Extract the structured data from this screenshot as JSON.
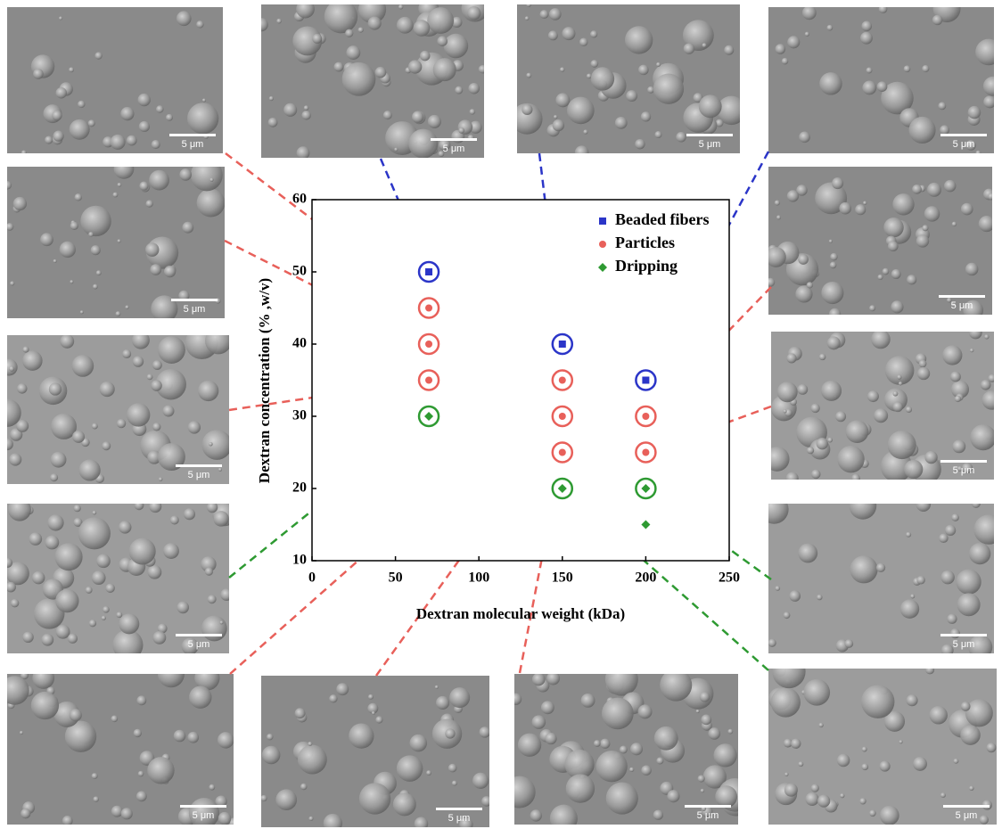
{
  "chart_data": {
    "type": "scatter",
    "x_label": "Dextran molecular weight (kDa)",
    "y_label": "Dextran concentration (% ,w/v)",
    "xlim": [
      0,
      250
    ],
    "xticks": [
      0,
      50,
      100,
      150,
      200,
      250
    ],
    "ylim": [
      10,
      60
    ],
    "yticks": [
      10,
      20,
      30,
      40,
      50,
      60
    ],
    "legend": "top-right",
    "series": [
      {
        "name": "Beaded fibers",
        "color": "#2b35c8",
        "marker": "square",
        "x": [
          70,
          150,
          200
        ],
        "values": [
          50,
          40,
          35
        ]
      },
      {
        "name": "Particles",
        "color": "#e8605a",
        "marker": "circle",
        "x": [
          70,
          70,
          70,
          150,
          150,
          150,
          200,
          200
        ],
        "values": [
          45,
          40,
          35,
          35,
          30,
          25,
          30,
          25
        ]
      },
      {
        "name": "Dripping",
        "color": "#2e9a32",
        "marker": "diamond",
        "x": [
          70,
          150,
          200,
          200
        ],
        "values": [
          30,
          20,
          20,
          15
        ]
      }
    ]
  },
  "micrographs": {
    "scale_labels": [
      "5 μm",
      "5 μm",
      "5 μm",
      "5 μm",
      "5 μm",
      "5 μm",
      "5 μm",
      "5 μm",
      "5 μm",
      "5 μm",
      "5 μm",
      "5 μm",
      "5 μm",
      "5 μm"
    ]
  }
}
